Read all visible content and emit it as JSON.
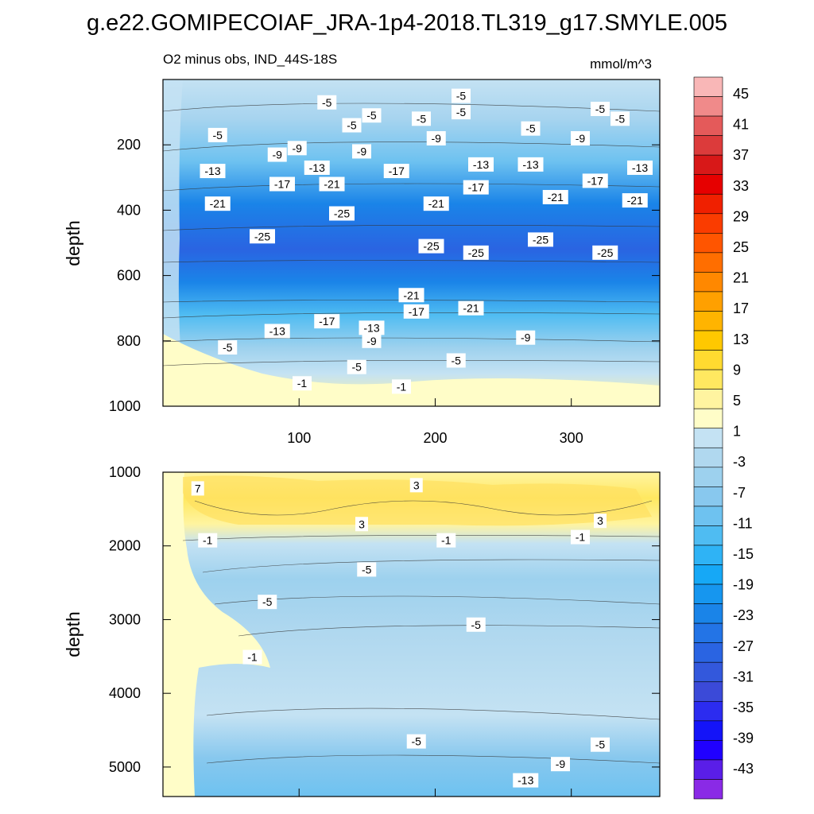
{
  "chart_data": {
    "type": "contour",
    "title": "g.e22.GOMIPECOIAF_JRA-1p4-2018.TL319_g17.SMYLE.005",
    "subtitle_left": "O2 minus obs, IND_44S-18S",
    "units": "mmol/m^3",
    "colorbar": {
      "labels": [
        "45",
        "41",
        "37",
        "33",
        "29",
        "25",
        "21",
        "17",
        "13",
        "9",
        "5",
        "1",
        "-3",
        "-7",
        "-11",
        "-15",
        "-19",
        "-23",
        "-27",
        "-31",
        "-35",
        "-39",
        "-43"
      ],
      "colors": [
        "#f9b7b7",
        "#f08a8a",
        "#e45a5a",
        "#dc3b3b",
        "#d81818",
        "#e60000",
        "#f02000",
        "#fa3c00",
        "#ff5500",
        "#ff6e00",
        "#ff8800",
        "#ffa000",
        "#ffb400",
        "#ffc800",
        "#ffda30",
        "#ffe860",
        "#fff4a0",
        "#fffdc8",
        "#c4e2f3",
        "#b0d8ef",
        "#9dd1ee",
        "#88c8ee",
        "#6ec2f0",
        "#4fbcf2",
        "#2fb3f5",
        "#16a8f6",
        "#1696ef",
        "#1a84e8",
        "#2374e6",
        "#2a64e2",
        "#3358dc",
        "#3b4ad8",
        "#2c2cf0",
        "#1414f8",
        "#2000ff",
        "#5a1ee8",
        "#8a2ae6"
      ]
    },
    "panels": [
      {
        "name": "upper",
        "ylabel": "depth",
        "yticks": [
          "200",
          "400",
          "600",
          "800",
          "1000"
        ],
        "ylim": [
          0,
          1000
        ],
        "xticks": [
          "100",
          "200",
          "300"
        ],
        "xlim": [
          0,
          365
        ],
        "contour_labels": [
          {
            "text": "-5",
            "x": 0.11,
            "y": 0.17
          },
          {
            "text": "-5",
            "x": 0.33,
            "y": 0.07
          },
          {
            "text": "-5",
            "x": 0.6,
            "y": 0.05
          },
          {
            "text": "-5",
            "x": 0.42,
            "y": 0.11
          },
          {
            "text": "-5",
            "x": 0.38,
            "y": 0.14
          },
          {
            "text": "-5",
            "x": 0.52,
            "y": 0.12
          },
          {
            "text": "-5",
            "x": 0.6,
            "y": 0.1
          },
          {
            "text": "-5",
            "x": 0.74,
            "y": 0.15
          },
          {
            "text": "-5",
            "x": 0.88,
            "y": 0.09
          },
          {
            "text": "-5",
            "x": 0.92,
            "y": 0.12
          },
          {
            "text": "-9",
            "x": 0.23,
            "y": 0.23
          },
          {
            "text": "-9",
            "x": 0.27,
            "y": 0.21
          },
          {
            "text": "-9",
            "x": 0.4,
            "y": 0.22
          },
          {
            "text": "-9",
            "x": 0.55,
            "y": 0.18
          },
          {
            "text": "-9",
            "x": 0.84,
            "y": 0.18
          },
          {
            "text": "-13",
            "x": 0.1,
            "y": 0.28
          },
          {
            "text": "-13",
            "x": 0.31,
            "y": 0.27
          },
          {
            "text": "-13",
            "x": 0.64,
            "y": 0.26
          },
          {
            "text": "-13",
            "x": 0.74,
            "y": 0.26
          },
          {
            "text": "-13",
            "x": 0.96,
            "y": 0.27
          },
          {
            "text": "-17",
            "x": 0.24,
            "y": 0.32
          },
          {
            "text": "-17",
            "x": 0.47,
            "y": 0.28
          },
          {
            "text": "-17",
            "x": 0.63,
            "y": 0.33
          },
          {
            "text": "-17",
            "x": 0.87,
            "y": 0.31
          },
          {
            "text": "-21",
            "x": 0.11,
            "y": 0.38
          },
          {
            "text": "-21",
            "x": 0.34,
            "y": 0.32
          },
          {
            "text": "-21",
            "x": 0.55,
            "y": 0.38
          },
          {
            "text": "-21",
            "x": 0.79,
            "y": 0.36
          },
          {
            "text": "-21",
            "x": 0.95,
            "y": 0.37
          },
          {
            "text": "-25",
            "x": 0.2,
            "y": 0.48
          },
          {
            "text": "-25",
            "x": 0.36,
            "y": 0.41
          },
          {
            "text": "-25",
            "x": 0.54,
            "y": 0.51
          },
          {
            "text": "-25",
            "x": 0.63,
            "y": 0.53
          },
          {
            "text": "-25",
            "x": 0.76,
            "y": 0.49
          },
          {
            "text": "-25",
            "x": 0.89,
            "y": 0.53
          },
          {
            "text": "-21",
            "x": 0.5,
            "y": 0.66
          },
          {
            "text": "-21",
            "x": 0.62,
            "y": 0.7
          },
          {
            "text": "-17",
            "x": 0.33,
            "y": 0.74
          },
          {
            "text": "-17",
            "x": 0.51,
            "y": 0.71
          },
          {
            "text": "-13",
            "x": 0.23,
            "y": 0.77
          },
          {
            "text": "-13",
            "x": 0.42,
            "y": 0.76
          },
          {
            "text": "-9",
            "x": 0.42,
            "y": 0.8
          },
          {
            "text": "-9",
            "x": 0.73,
            "y": 0.79
          },
          {
            "text": "-5",
            "x": 0.13,
            "y": 0.82
          },
          {
            "text": "-5",
            "x": 0.39,
            "y": 0.88
          },
          {
            "text": "-5",
            "x": 0.59,
            "y": 0.86
          },
          {
            "text": "-1",
            "x": 0.28,
            "y": 0.93
          },
          {
            "text": "-1",
            "x": 0.48,
            "y": 0.94
          }
        ]
      },
      {
        "name": "lower",
        "ylabel": "depth",
        "yticks": [
          "1000",
          "2000",
          "3000",
          "4000",
          "5000"
        ],
        "ylim": [
          1000,
          5400
        ],
        "xlim": [
          0,
          365
        ],
        "contour_labels": [
          {
            "text": "7",
            "x": 0.07,
            "y": 0.05
          },
          {
            "text": "3",
            "x": 0.51,
            "y": 0.04
          },
          {
            "text": "3",
            "x": 0.4,
            "y": 0.16
          },
          {
            "text": "3",
            "x": 0.88,
            "y": 0.15
          },
          {
            "text": "-1",
            "x": 0.09,
            "y": 0.21
          },
          {
            "text": "-1",
            "x": 0.57,
            "y": 0.21
          },
          {
            "text": "-1",
            "x": 0.84,
            "y": 0.2
          },
          {
            "text": "-5",
            "x": 0.41,
            "y": 0.3
          },
          {
            "text": "-5",
            "x": 0.21,
            "y": 0.4
          },
          {
            "text": "-5",
            "x": 0.63,
            "y": 0.47
          },
          {
            "text": "-1",
            "x": 0.18,
            "y": 0.57
          },
          {
            "text": "-5",
            "x": 0.51,
            "y": 0.83
          },
          {
            "text": "-5",
            "x": 0.88,
            "y": 0.84
          },
          {
            "text": "-9",
            "x": 0.8,
            "y": 0.9
          },
          {
            "text": "-13",
            "x": 0.73,
            "y": 0.95
          }
        ]
      }
    ]
  }
}
